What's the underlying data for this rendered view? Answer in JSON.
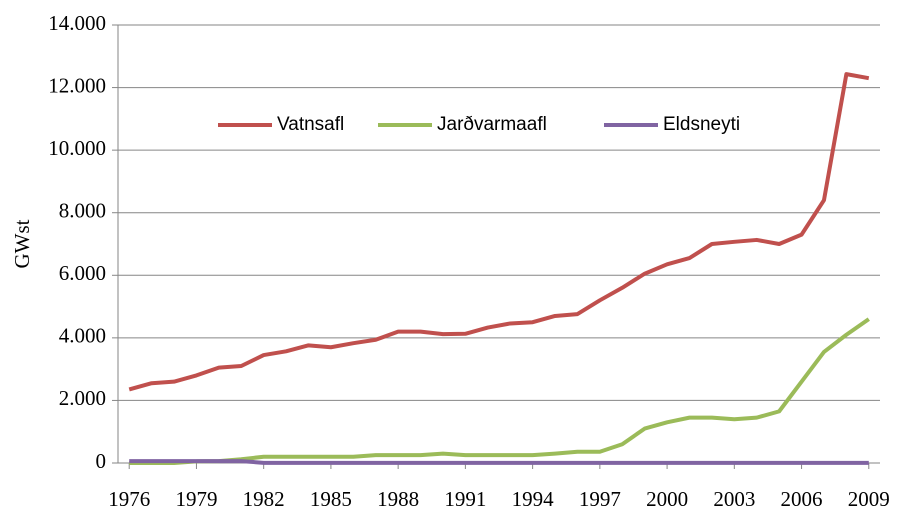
{
  "chart_data": {
    "type": "line",
    "y_label": "GWst",
    "x": [
      1976,
      1977,
      1978,
      1979,
      1980,
      1981,
      1982,
      1983,
      1984,
      1985,
      1986,
      1987,
      1988,
      1989,
      1990,
      1991,
      1992,
      1993,
      1994,
      1995,
      1996,
      1997,
      1998,
      1999,
      2000,
      2001,
      2002,
      2003,
      2004,
      2005,
      2006,
      2007,
      2008,
      2009
    ],
    "xlim": [
      1975.5,
      2009.5
    ],
    "xticks": [
      1976,
      1979,
      1982,
      1985,
      1988,
      1991,
      1994,
      1997,
      2000,
      2003,
      2006,
      2009
    ],
    "ylim": [
      0,
      14000
    ],
    "yticks": [
      0,
      {
        "value": 2000,
        "label": "2.000"
      },
      {
        "value": 4000,
        "label": "4.000"
      },
      {
        "value": 6000,
        "label": "6.000"
      },
      {
        "value": 8000,
        "label": "8.000"
      },
      {
        "value": 10000,
        "label": "10.000"
      },
      {
        "value": 12000,
        "label": "12.000"
      },
      {
        "value": 14000,
        "label": "14.000"
      }
    ],
    "grid": true,
    "legend": "top",
    "series": [
      {
        "name": "Vatnsafl",
        "color": "#c0504d",
        "values": [
          2350,
          2550,
          2600,
          2800,
          3050,
          3100,
          3450,
          3570,
          3760,
          3700,
          3830,
          3940,
          4200,
          4200,
          4120,
          4130,
          4330,
          4460,
          4500,
          4700,
          4760,
          5200,
          5600,
          6050,
          6350,
          6550,
          7000,
          7070,
          7130,
          7000,
          7300,
          8400,
          12430,
          12300
        ]
      },
      {
        "name": "Jarðvarmaafl",
        "color": "#9bbb59",
        "values": [
          0,
          0,
          0,
          50,
          60,
          120,
          200,
          200,
          200,
          200,
          200,
          250,
          250,
          250,
          300,
          250,
          250,
          250,
          250,
          300,
          360,
          360,
          600,
          1100,
          1300,
          1450,
          1450,
          1400,
          1450,
          1650,
          2600,
          3550,
          4100,
          4600
        ]
      },
      {
        "name": "Eldsneyti",
        "color": "#8064a2",
        "values": [
          60,
          60,
          60,
          60,
          60,
          60,
          5,
          5,
          5,
          5,
          5,
          5,
          5,
          5,
          5,
          5,
          5,
          5,
          5,
          5,
          5,
          5,
          5,
          5,
          5,
          5,
          5,
          5,
          5,
          5,
          5,
          5,
          5,
          5
        ]
      }
    ]
  }
}
